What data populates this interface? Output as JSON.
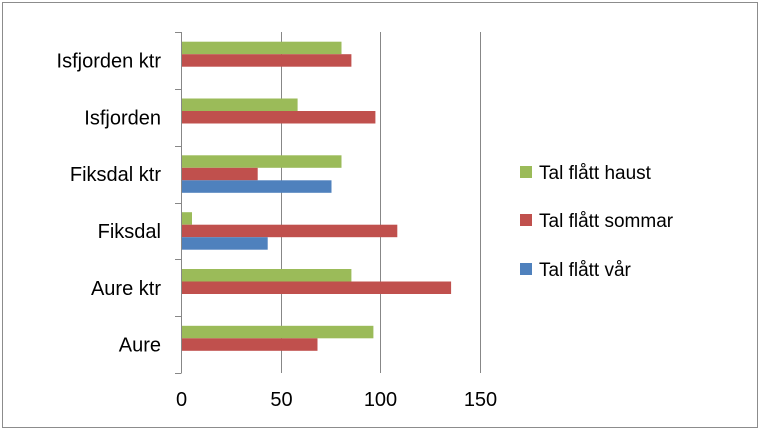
{
  "chart_data": {
    "type": "bar",
    "orientation": "horizontal",
    "categories": [
      "Isfjorden ktr",
      "Isfjorden",
      "Fiksdal ktr",
      "Fiksdal",
      "Aure ktr",
      "Aure"
    ],
    "series": [
      {
        "name": "Tal flått haust",
        "color": "#9bbb59",
        "values": [
          80,
          58,
          80,
          5,
          85,
          96
        ]
      },
      {
        "name": "Tal flått sommar",
        "color": "#c0504d",
        "values": [
          85,
          97,
          38,
          108,
          135,
          68
        ]
      },
      {
        "name": "Tal flått vår",
        "color": "#4f81bd",
        "values": [
          0,
          0,
          75,
          43,
          0,
          0
        ]
      }
    ],
    "xlim": [
      0,
      150
    ],
    "xticks": [
      0,
      50,
      100,
      150
    ],
    "grid": true,
    "legend_position": "right",
    "title": "",
    "xlabel": "",
    "ylabel": ""
  }
}
